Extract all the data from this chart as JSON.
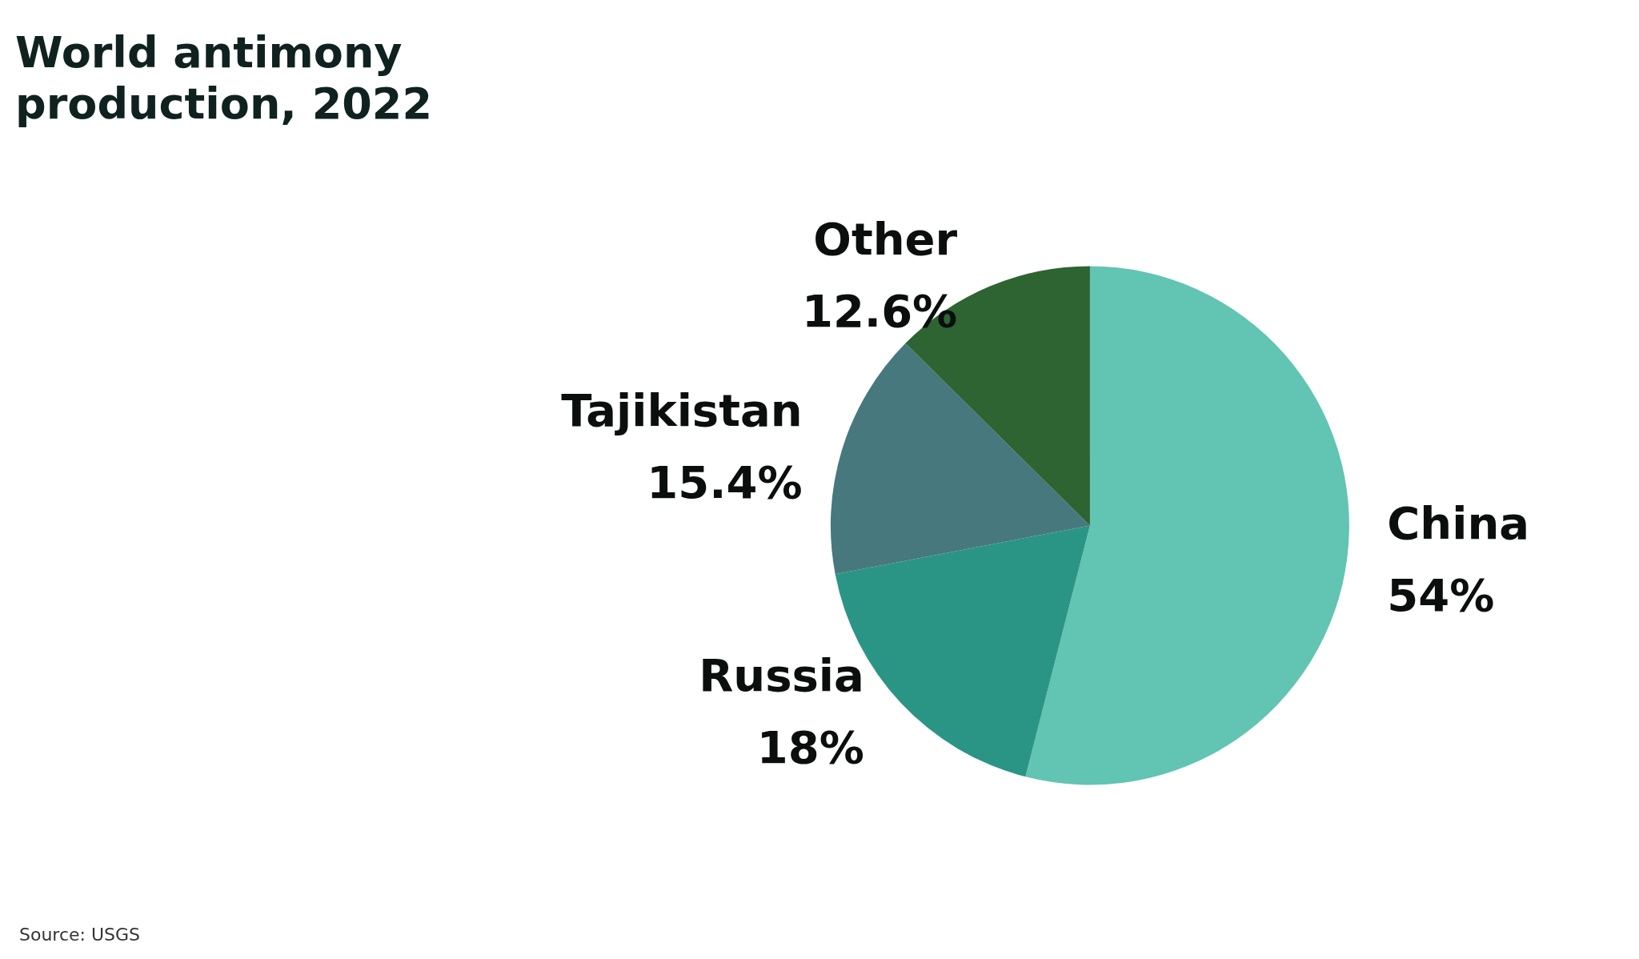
{
  "chart_data": {
    "type": "pie",
    "title": "World antimony production, 2022",
    "categories": [
      "China",
      "Russia",
      "Tajikistan",
      "Other"
    ],
    "values": [
      54,
      18,
      15.4,
      12.6
    ],
    "colors": [
      "#62c4b2",
      "#2b9585",
      "#46787e",
      "#2d6432"
    ],
    "value_labels": [
      "54%",
      "18%",
      "15.4%",
      "12.6%"
    ],
    "legend": false,
    "annotations": [
      "Source: USGS"
    ]
  }
}
